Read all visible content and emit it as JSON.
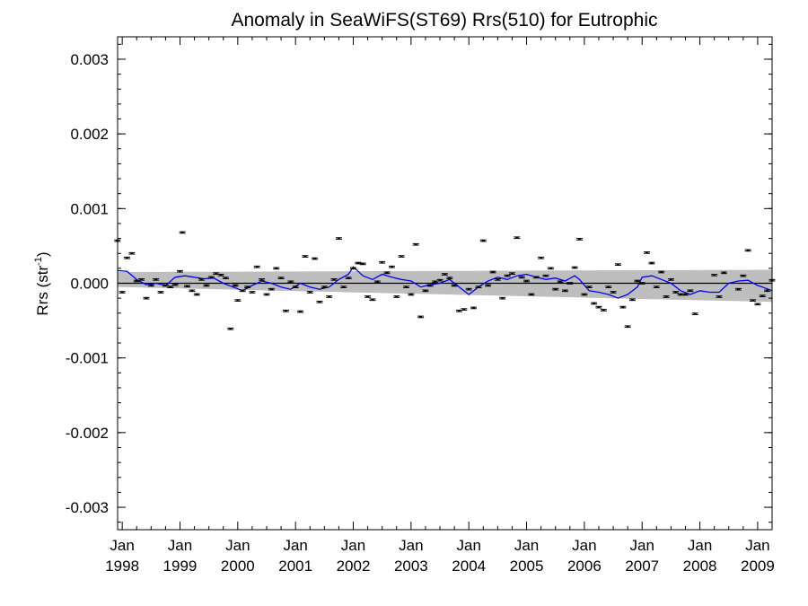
{
  "chart_data": {
    "type": "scatter",
    "title": "Anomaly in SeaWiFS(ST69) Rrs(510) for Eutrophic",
    "xlabel": "",
    "ylabel": "Rrs (str",
    "ylabel_superscript": "-1",
    "ylabel_close": ")",
    "ylim": [
      -0.0033,
      0.0033
    ],
    "xlim": [
      1997.92,
      2009.25
    ],
    "grid": false,
    "legend": "none",
    "y_ticks": [
      {
        "value": 0.003,
        "label": "0.003"
      },
      {
        "value": 0.002,
        "label": "0.002"
      },
      {
        "value": 0.001,
        "label": "0.001"
      },
      {
        "value": 0.0,
        "label": "0.000"
      },
      {
        "value": -0.001,
        "label": "-0.001"
      },
      {
        "value": -0.002,
        "label": "-0.002"
      },
      {
        "value": -0.003,
        "label": "-0.003"
      }
    ],
    "x_ticks": [
      {
        "value": 1998,
        "month": "Jan",
        "year": "1998"
      },
      {
        "value": 1999,
        "month": "Jan",
        "year": "1999"
      },
      {
        "value": 2000,
        "month": "Jan",
        "year": "2000"
      },
      {
        "value": 2001,
        "month": "Jan",
        "year": "2001"
      },
      {
        "value": 2002,
        "month": "Jan",
        "year": "2002"
      },
      {
        "value": 2003,
        "month": "Jan",
        "year": "2003"
      },
      {
        "value": 2004,
        "month": "Jan",
        "year": "2004"
      },
      {
        "value": 2005,
        "month": "Jan",
        "year": "2005"
      },
      {
        "value": 2006,
        "month": "Jan",
        "year": "2006"
      },
      {
        "value": 2007,
        "month": "Jan",
        "year": "2007"
      },
      {
        "value": 2008,
        "month": "Jan",
        "year": "2008"
      },
      {
        "value": 2009,
        "month": "Jan",
        "year": "2009"
      }
    ],
    "colors": {
      "points": "#000000",
      "smoothed_line": "#0000ff",
      "confidence_band": "#bebebe",
      "zero_line": "#000000"
    },
    "error_bar_halfwidth": 1e-05,
    "points": [
      {
        "x": 1997.917,
        "y": 0.00057
      },
      {
        "x": 1998.0,
        "y": -0.00012
      },
      {
        "x": 1998.083,
        "y": 0.00034
      },
      {
        "x": 1998.167,
        "y": 0.0004
      },
      {
        "x": 1998.25,
        "y": 3e-05
      },
      {
        "x": 1998.333,
        "y": 5e-05
      },
      {
        "x": 1998.417,
        "y": -0.0002
      },
      {
        "x": 1998.5,
        "y": -3e-05
      },
      {
        "x": 1998.583,
        "y": 5e-05
      },
      {
        "x": 1998.667,
        "y": -0.00012
      },
      {
        "x": 1998.75,
        "y": -3e-05
      },
      {
        "x": 1998.833,
        "y": -5e-05
      },
      {
        "x": 1998.917,
        "y": -2e-05
      },
      {
        "x": 1999.0,
        "y": 0.00016
      },
      {
        "x": 1999.042,
        "y": 0.00068
      },
      {
        "x": 1999.125,
        "y": -4e-05
      },
      {
        "x": 1999.208,
        "y": -0.0001
      },
      {
        "x": 1999.292,
        "y": -0.00015
      },
      {
        "x": 1999.375,
        "y": 5e-05
      },
      {
        "x": 1999.458,
        "y": -3e-05
      },
      {
        "x": 1999.542,
        "y": 8e-05
      },
      {
        "x": 1999.625,
        "y": 0.00013
      },
      {
        "x": 1999.708,
        "y": 0.00011
      },
      {
        "x": 1999.792,
        "y": 7e-05
      },
      {
        "x": 1999.875,
        "y": -0.00061
      },
      {
        "x": 1999.958,
        "y": -3e-05
      },
      {
        "x": 2000.0,
        "y": -0.00023
      },
      {
        "x": 2000.083,
        "y": -0.0001
      },
      {
        "x": 2000.167,
        "y": -5e-05
      },
      {
        "x": 2000.25,
        "y": -0.00012
      },
      {
        "x": 2000.333,
        "y": 0.00022
      },
      {
        "x": 2000.417,
        "y": 5e-05
      },
      {
        "x": 2000.5,
        "y": -0.00015
      },
      {
        "x": 2000.583,
        "y": -8e-05
      },
      {
        "x": 2000.667,
        "y": 0.0002
      },
      {
        "x": 2000.75,
        "y": 7e-05
      },
      {
        "x": 2000.833,
        "y": -0.00037
      },
      {
        "x": 2000.917,
        "y": 2e-05
      },
      {
        "x": 2001.0,
        "y": -5e-05
      },
      {
        "x": 2001.083,
        "y": -0.00038
      },
      {
        "x": 2001.167,
        "y": 0.00036
      },
      {
        "x": 2001.25,
        "y": -0.00012
      },
      {
        "x": 2001.333,
        "y": 0.00033
      },
      {
        "x": 2001.417,
        "y": -0.00025
      },
      {
        "x": 2001.5,
        "y": -5e-05
      },
      {
        "x": 2001.583,
        "y": -0.00018
      },
      {
        "x": 2001.667,
        "y": 5e-05
      },
      {
        "x": 2001.75,
        "y": 0.0006
      },
      {
        "x": 2001.833,
        "y": -5e-05
      },
      {
        "x": 2001.917,
        "y": 7e-05
      },
      {
        "x": 2002.0,
        "y": 0.0002
      },
      {
        "x": 2002.083,
        "y": 0.00027
      },
      {
        "x": 2002.167,
        "y": 0.00026
      },
      {
        "x": 2002.25,
        "y": -0.00018
      },
      {
        "x": 2002.333,
        "y": -0.00022
      },
      {
        "x": 2002.417,
        "y": 2e-05
      },
      {
        "x": 2002.5,
        "y": 0.00028
      },
      {
        "x": 2002.583,
        "y": 0.00014
      },
      {
        "x": 2002.667,
        "y": 0.00022
      },
      {
        "x": 2002.75,
        "y": -0.00018
      },
      {
        "x": 2002.833,
        "y": 0.00036
      },
      {
        "x": 2002.917,
        "y": -5e-05
      },
      {
        "x": 2003.0,
        "y": -0.00015
      },
      {
        "x": 2003.083,
        "y": 0.00052
      },
      {
        "x": 2003.167,
        "y": -0.00045
      },
      {
        "x": 2003.25,
        "y": -0.0001
      },
      {
        "x": 2003.333,
        "y": -3e-05
      },
      {
        "x": 2003.417,
        "y": 2e-05
      },
      {
        "x": 2003.5,
        "y": 4e-05
      },
      {
        "x": 2003.583,
        "y": 0.00012
      },
      {
        "x": 2003.667,
        "y": 7e-05
      },
      {
        "x": 2003.75,
        "y": -3e-05
      },
      {
        "x": 2003.833,
        "y": -0.00037
      },
      {
        "x": 2003.917,
        "y": -0.00035
      },
      {
        "x": 2004.0,
        "y": -8e-05
      },
      {
        "x": 2004.083,
        "y": -0.00033
      },
      {
        "x": 2004.167,
        "y": -5e-05
      },
      {
        "x": 2004.25,
        "y": 0.00057
      },
      {
        "x": 2004.333,
        "y": -3e-05
      },
      {
        "x": 2004.417,
        "y": 0.00015
      },
      {
        "x": 2004.5,
        "y": 5e-05
      },
      {
        "x": 2004.583,
        "y": -0.0002
      },
      {
        "x": 2004.667,
        "y": 0.0001
      },
      {
        "x": 2004.75,
        "y": 0.00013
      },
      {
        "x": 2004.833,
        "y": 0.00061
      },
      {
        "x": 2004.917,
        "y": 8e-05
      },
      {
        "x": 2005.0,
        "y": 3e-05
      },
      {
        "x": 2005.083,
        "y": -0.00015
      },
      {
        "x": 2005.167,
        "y": 8e-05
      },
      {
        "x": 2005.25,
        "y": 0.00034
      },
      {
        "x": 2005.333,
        "y": 0.0001
      },
      {
        "x": 2005.417,
        "y": 0.0002
      },
      {
        "x": 2005.5,
        "y": -8e-05
      },
      {
        "x": 2005.583,
        "y": 2e-05
      },
      {
        "x": 2005.667,
        "y": -0.0001
      },
      {
        "x": 2005.75,
        "y": 0.0
      },
      {
        "x": 2005.833,
        "y": 0.00021
      },
      {
        "x": 2005.917,
        "y": 0.00059
      },
      {
        "x": 2006.0,
        "y": -0.00015
      },
      {
        "x": 2006.083,
        "y": -5e-05
      },
      {
        "x": 2006.167,
        "y": -0.00027
      },
      {
        "x": 2006.25,
        "y": -0.00032
      },
      {
        "x": 2006.333,
        "y": -0.00036
      },
      {
        "x": 2006.417,
        "y": -5e-05
      },
      {
        "x": 2006.5,
        "y": -0.00012
      },
      {
        "x": 2006.583,
        "y": 0.00025
      },
      {
        "x": 2006.667,
        "y": -0.00032
      },
      {
        "x": 2006.75,
        "y": -0.00058
      },
      {
        "x": 2006.833,
        "y": -0.00022
      },
      {
        "x": 2006.917,
        "y": 3e-05
      },
      {
        "x": 2007.0,
        "y": 0.0
      },
      {
        "x": 2007.083,
        "y": 0.00041
      },
      {
        "x": 2007.167,
        "y": 0.00027
      },
      {
        "x": 2007.25,
        "y": -5e-05
      },
      {
        "x": 2007.333,
        "y": 0.00015
      },
      {
        "x": 2007.417,
        "y": -0.00018
      },
      {
        "x": 2007.5,
        "y": 5e-05
      },
      {
        "x": 2007.583,
        "y": -0.00012
      },
      {
        "x": 2007.667,
        "y": -0.00015
      },
      {
        "x": 2007.75,
        "y": -0.00015
      },
      {
        "x": 2007.833,
        "y": -0.0001
      },
      {
        "x": 2007.917,
        "y": -0.00041
      },
      {
        "x": 2008.25,
        "y": 0.00011
      },
      {
        "x": 2008.333,
        "y": -0.00018
      },
      {
        "x": 2008.417,
        "y": 0.00014
      },
      {
        "x": 2008.667,
        "y": -8e-05
      },
      {
        "x": 2008.75,
        "y": 0.0001
      },
      {
        "x": 2008.833,
        "y": 0.00044
      },
      {
        "x": 2008.917,
        "y": -0.00023
      },
      {
        "x": 2009.0,
        "y": -0.00028
      },
      {
        "x": 2009.083,
        "y": -0.00017
      },
      {
        "x": 2009.167,
        "y": -0.0001
      },
      {
        "x": 2009.25,
        "y": 4e-05
      }
    ],
    "smoothed": [
      {
        "x": 1997.917,
        "y": 0.00017
      },
      {
        "x": 1998.083,
        "y": 0.00016
      },
      {
        "x": 1998.25,
        "y": 5e-05
      },
      {
        "x": 1998.417,
        "y": -2e-05
      },
      {
        "x": 1998.583,
        "y": 0.0
      },
      {
        "x": 1998.75,
        "y": -3e-05
      },
      {
        "x": 1998.917,
        "y": 8e-05
      },
      {
        "x": 1999.083,
        "y": 0.0001
      },
      {
        "x": 1999.25,
        "y": 8e-05
      },
      {
        "x": 1999.417,
        "y": 6e-05
      },
      {
        "x": 1999.583,
        "y": 7e-05
      },
      {
        "x": 1999.75,
        "y": 0.0
      },
      {
        "x": 1999.917,
        "y": -5e-05
      },
      {
        "x": 2000.083,
        "y": -0.0001
      },
      {
        "x": 2000.25,
        "y": -3e-05
      },
      {
        "x": 2000.417,
        "y": 3e-05
      },
      {
        "x": 2000.583,
        "y": 0.0
      },
      {
        "x": 2000.75,
        "y": -5e-05
      },
      {
        "x": 2000.917,
        "y": -8e-05
      },
      {
        "x": 2001.083,
        "y": 0.0
      },
      {
        "x": 2001.25,
        "y": -5e-05
      },
      {
        "x": 2001.417,
        "y": -8e-05
      },
      {
        "x": 2001.583,
        "y": -5e-05
      },
      {
        "x": 2001.75,
        "y": 5e-05
      },
      {
        "x": 2001.917,
        "y": 0.00012
      },
      {
        "x": 2002.0,
        "y": 0.00022
      },
      {
        "x": 2002.167,
        "y": 0.0001
      },
      {
        "x": 2002.333,
        "y": 5e-05
      },
      {
        "x": 2002.5,
        "y": 0.00012
      },
      {
        "x": 2002.667,
        "y": 8e-05
      },
      {
        "x": 2002.833,
        "y": 5e-05
      },
      {
        "x": 2003.0,
        "y": 3e-05
      },
      {
        "x": 2003.167,
        "y": -5e-05
      },
      {
        "x": 2003.333,
        "y": -2e-05
      },
      {
        "x": 2003.5,
        "y": 0.0
      },
      {
        "x": 2003.667,
        "y": 5e-05
      },
      {
        "x": 2003.833,
        "y": -5e-05
      },
      {
        "x": 2004.0,
        "y": -0.00015
      },
      {
        "x": 2004.167,
        "y": -5e-05
      },
      {
        "x": 2004.333,
        "y": 3e-05
      },
      {
        "x": 2004.5,
        "y": 8e-05
      },
      {
        "x": 2004.667,
        "y": 5e-05
      },
      {
        "x": 2004.833,
        "y": 0.0001
      },
      {
        "x": 2005.0,
        "y": 0.00012
      },
      {
        "x": 2005.167,
        "y": 8e-05
      },
      {
        "x": 2005.333,
        "y": 5e-05
      },
      {
        "x": 2005.5,
        "y": 7e-05
      },
      {
        "x": 2005.667,
        "y": 3e-05
      },
      {
        "x": 2005.833,
        "y": 0.0001
      },
      {
        "x": 2005.917,
        "y": 5e-05
      },
      {
        "x": 2006.083,
        "y": -0.0001
      },
      {
        "x": 2006.25,
        "y": -0.00012
      },
      {
        "x": 2006.417,
        "y": -0.00015
      },
      {
        "x": 2006.583,
        "y": -0.0002
      },
      {
        "x": 2006.75,
        "y": -0.00015
      },
      {
        "x": 2006.917,
        "y": -5e-05
      },
      {
        "x": 2007.0,
        "y": 8e-05
      },
      {
        "x": 2007.167,
        "y": 0.0001
      },
      {
        "x": 2007.333,
        "y": 5e-05
      },
      {
        "x": 2007.5,
        "y": 0.0
      },
      {
        "x": 2007.667,
        "y": -0.0001
      },
      {
        "x": 2007.833,
        "y": -0.00015
      },
      {
        "x": 2008.0,
        "y": -0.0001
      },
      {
        "x": 2008.167,
        "y": -0.00012
      },
      {
        "x": 2008.333,
        "y": -0.00012
      },
      {
        "x": 2008.5,
        "y": 0.0
      },
      {
        "x": 2008.667,
        "y": 3e-05
      },
      {
        "x": 2008.833,
        "y": 4e-05
      },
      {
        "x": 2009.0,
        "y": -3e-05
      },
      {
        "x": 2009.083,
        "y": -5e-05
      },
      {
        "x": 2009.25,
        "y": -0.0001
      }
    ],
    "zero_line": 0.0,
    "band": {
      "x": [
        1997.92,
        2009.25
      ],
      "upper": [
        0.00015,
        0.00018
      ],
      "lower": [
        -5e-05,
        -0.00025
      ]
    }
  }
}
